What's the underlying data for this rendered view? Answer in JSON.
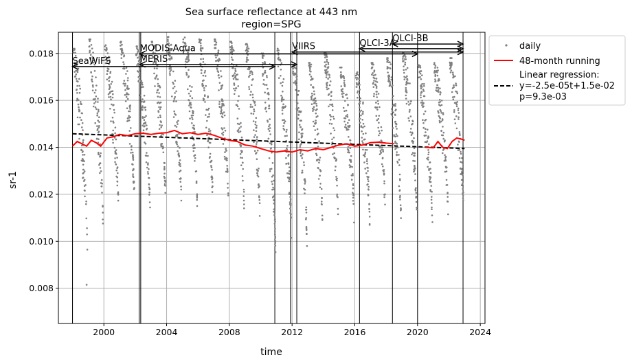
{
  "chart_data": {
    "type": "scatter",
    "title": "Sea surface reflectance at 443 nm",
    "subtitle": "region=SPG",
    "xlabel": "time",
    "ylabel": "sr-1",
    "xlim": [
      1997.1,
      2024.3
    ],
    "ylim": [
      0.0065,
      0.0189
    ],
    "grid": true,
    "x_ticks": [
      2000,
      2004,
      2008,
      2012,
      2016,
      2020,
      2024
    ],
    "x_tick_labels": [
      "2000",
      "2004",
      "2008",
      "2012",
      "2016",
      "2020",
      "2024"
    ],
    "y_ticks": [
      0.008,
      0.01,
      0.012,
      0.014,
      0.016,
      0.018
    ],
    "y_tick_labels": [
      "0.008",
      "0.010",
      "0.012",
      "0.014",
      "0.016",
      "0.018"
    ],
    "legend": {
      "placement": "outside-top-right",
      "entries": [
        {
          "label": "daily",
          "marker": "dot",
          "color": "#808080"
        },
        {
          "label": "48-month running",
          "marker": "line",
          "color": "#ff0000"
        },
        {
          "label": "Linear regression:\ny=-2.5e-05t+1.5e-02\np=9.3e-03",
          "marker": "dashed-line",
          "color": "#000000"
        }
      ]
    },
    "series": [
      {
        "name": "daily",
        "color": "#808080",
        "seasonal_envelope": [
          {
            "year": 1998,
            "max": 0.0182,
            "min": 0.0093
          },
          {
            "year": 1999,
            "max": 0.0186,
            "min": 0.0104
          },
          {
            "year": 2000,
            "max": 0.0184,
            "min": 0.011
          },
          {
            "year": 2001,
            "max": 0.0185,
            "min": 0.0115
          },
          {
            "year": 2002,
            "max": 0.0183,
            "min": 0.011
          },
          {
            "year": 2003,
            "max": 0.0185,
            "min": 0.0113
          },
          {
            "year": 2004,
            "max": 0.0187,
            "min": 0.0112
          },
          {
            "year": 2005,
            "max": 0.0188,
            "min": 0.0115
          },
          {
            "year": 2006,
            "max": 0.0186,
            "min": 0.0114
          },
          {
            "year": 2007,
            "max": 0.0186,
            "min": 0.011
          },
          {
            "year": 2008,
            "max": 0.0185,
            "min": 0.0112
          },
          {
            "year": 2009,
            "max": 0.0184,
            "min": 0.0108
          },
          {
            "year": 2010,
            "max": 0.018,
            "min": 0.0093
          },
          {
            "year": 2011,
            "max": 0.0182,
            "min": 0.01
          },
          {
            "year": 2012,
            "max": 0.0175,
            "min": 0.0098
          },
          {
            "year": 2013,
            "max": 0.0176,
            "min": 0.0103
          },
          {
            "year": 2014,
            "max": 0.018,
            "min": 0.0106
          },
          {
            "year": 2015,
            "max": 0.0174,
            "min": 0.0108
          },
          {
            "year": 2016,
            "max": 0.0172,
            "min": 0.0107
          },
          {
            "year": 2017,
            "max": 0.0176,
            "min": 0.011
          },
          {
            "year": 2018,
            "max": 0.0178,
            "min": 0.0108
          },
          {
            "year": 2019,
            "max": 0.018,
            "min": 0.011
          },
          {
            "year": 2020,
            "max": 0.0175,
            "min": 0.0106
          },
          {
            "year": 2021,
            "max": 0.0176,
            "min": 0.011
          },
          {
            "year": 2022,
            "max": 0.0178,
            "min": 0.0108
          }
        ],
        "outliers": [
          [
            1998.9,
            0.00815
          ]
        ]
      },
      {
        "name": "48-month running",
        "color": "#ff0000",
        "x": [
          1998.0,
          1998.3,
          1998.6,
          1998.9,
          1999.2,
          1999.5,
          1999.8,
          2000.2,
          2000.6,
          2001.0,
          2001.5,
          2002.0,
          2002.5,
          2003.0,
          2003.5,
          2004.0,
          2004.5,
          2005.0,
          2005.5,
          2006.0,
          2006.5,
          2007.0,
          2007.5,
          2008.0,
          2008.5,
          2009.0,
          2009.5,
          2010.0,
          2010.5,
          2011.0,
          2011.5,
          2012.0,
          2012.5,
          2013.0,
          2013.5,
          2014.0,
          2014.5,
          2015.0,
          2015.5,
          2016.0,
          2016.5,
          2017.0,
          2017.5,
          2018.0,
          2018.5,
          2020.5,
          2021.0,
          2021.3,
          2021.6,
          2021.9,
          2022.2,
          2022.5,
          2022.8,
          2023.0
        ],
        "values": [
          0.01405,
          0.01425,
          0.01415,
          0.01405,
          0.0143,
          0.0142,
          0.01405,
          0.0144,
          0.01445,
          0.01455,
          0.0145,
          0.01458,
          0.0146,
          0.01455,
          0.0146,
          0.01462,
          0.01472,
          0.01458,
          0.01462,
          0.01455,
          0.0146,
          0.01452,
          0.0144,
          0.0143,
          0.01425,
          0.0141,
          0.01405,
          0.01395,
          0.01385,
          0.0138,
          0.01385,
          0.0138,
          0.0139,
          0.01385,
          0.01395,
          0.0139,
          0.014,
          0.0141,
          0.01415,
          0.01405,
          0.0141,
          0.0142,
          0.01422,
          0.01418,
          0.01415,
          0.014,
          0.01398,
          0.01425,
          0.014,
          0.01395,
          0.01425,
          0.0144,
          0.01435,
          0.0143
        ],
        "gaps_after_index": [
          44
        ]
      },
      {
        "name": "Linear regression:\ny=-2.5e-05t+1.5e-02\np=9.3e-03",
        "color": "#000000",
        "style": "dashed",
        "x": [
          1998.0,
          2023.0
        ],
        "values": [
          0.01458,
          0.01395
        ]
      }
    ],
    "missions": [
      {
        "label": "SeaWiFS",
        "start": 1998.0,
        "end": 2010.9,
        "arrow_y": 0.01744
      },
      {
        "label": "MODIS-Aqua",
        "start": 2002.3,
        "end": 2020.0,
        "arrow_y": 0.01798
      },
      {
        "label": "MERIS",
        "start": 2002.3,
        "end": 2012.3,
        "arrow_y": 0.01753
      },
      {
        "label": "VIIRS",
        "start": 2012.0,
        "end": 2022.9,
        "arrow_y": 0.01806
      },
      {
        "label": "OLCI-3A",
        "start": 2016.3,
        "end": 2022.9,
        "arrow_y": 0.0182
      },
      {
        "label": "OLCI-3B",
        "start": 2018.4,
        "end": 2022.9,
        "arrow_y": 0.0184
      }
    ],
    "vertical_lines": [
      1998.0,
      2002.25,
      2002.35,
      2010.9,
      2011.9,
      2012.3,
      2016.3,
      2018.4,
      2020.0,
      2022.9
    ]
  }
}
